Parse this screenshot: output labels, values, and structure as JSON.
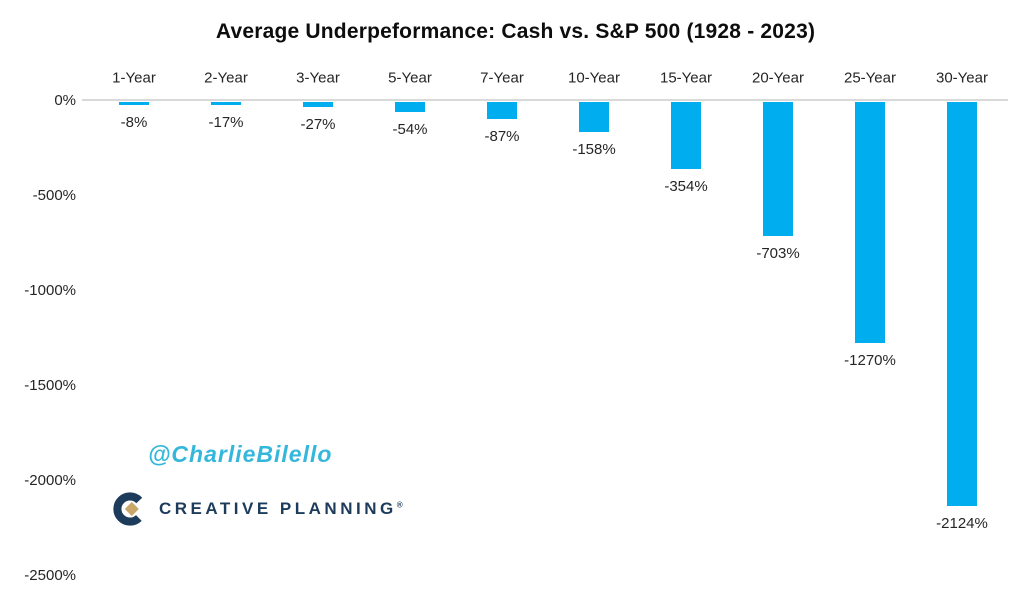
{
  "title": "Average Underpeformance: Cash vs. S&P 500 (1928 - 2023)",
  "watermark": {
    "text": "@CharlieBilello",
    "color": "#35b7db"
  },
  "logo": {
    "text": "CREATIVE PLANNING",
    "mark": "®",
    "navy": "#1d3c5b",
    "gold": "#c9a76b"
  },
  "chart_data": {
    "type": "bar",
    "title": "Average Underpeformance: Cash vs. S&P 500 (1928 - 2023)",
    "categories": [
      "1-Year",
      "2-Year",
      "3-Year",
      "5-Year",
      "7-Year",
      "10-Year",
      "15-Year",
      "20-Year",
      "25-Year",
      "30-Year"
    ],
    "values": [
      -8,
      -17,
      -27,
      -54,
      -87,
      -158,
      -354,
      -703,
      -1270,
      -2124
    ],
    "value_labels": [
      "-8%",
      "-17%",
      "-27%",
      "-54%",
      "-87%",
      "-158%",
      "-354%",
      "-703%",
      "-1270%",
      "-2124%"
    ],
    "xlabel": "",
    "ylabel": "",
    "ylim": [
      -2500,
      0
    ],
    "yticks": [
      0,
      -500,
      -1000,
      -1500,
      -2000,
      -2500
    ],
    "ytick_labels": [
      "0%",
      "-500%",
      "-1000%",
      "-1500%",
      "-2000%",
      "-2500%"
    ],
    "bar_color": "#00aeef",
    "axis_line_color": "#d9d9d9",
    "grid": false,
    "legend": null,
    "x_axis_position": "top",
    "data_label_position": "below-bar"
  }
}
